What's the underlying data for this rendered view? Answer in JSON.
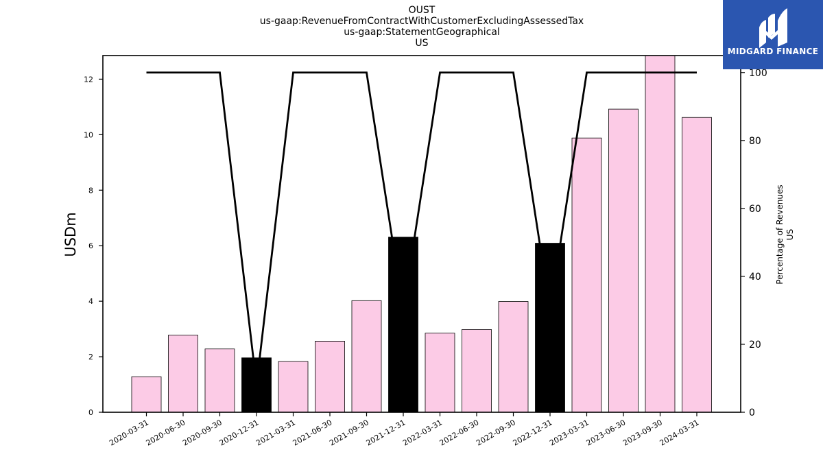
{
  "chart_data": {
    "type": "bar",
    "title_lines": [
      "OUST",
      "us-gaap:RevenueFromContractWithCustomerExcludingAssessedTax",
      "us-gaap:StatementGeographical",
      "US"
    ],
    "ylabel": "USDm",
    "y2label_lines": [
      "Percentage of Revenues",
      "US"
    ],
    "ylim": [
      0,
      12.85
    ],
    "y2lim": [
      0,
      105
    ],
    "yticks": [
      0,
      2,
      4,
      6,
      8,
      10,
      12
    ],
    "y2ticks": [
      0,
      20,
      40,
      60,
      80,
      100
    ],
    "categories": [
      "2020-03-31",
      "2020-06-30",
      "2020-09-30",
      "2020-12-31",
      "2021-03-31",
      "2021-06-30",
      "2021-09-30",
      "2021-12-31",
      "2022-03-31",
      "2022-06-30",
      "2022-09-30",
      "2022-12-31",
      "2023-03-31",
      "2023-06-30",
      "2023-09-30",
      "2024-03-31"
    ],
    "values": [
      1.28,
      2.78,
      2.28,
      1.96,
      1.83,
      2.56,
      4.02,
      6.31,
      2.85,
      2.98,
      3.99,
      6.09,
      9.88,
      10.92,
      12.9,
      10.62
    ],
    "bar_colors": [
      "#fccbe6",
      "#fccbe6",
      "#fccbe6",
      "#000000",
      "#fccbe6",
      "#fccbe6",
      "#fccbe6",
      "#000000",
      "#fccbe6",
      "#fccbe6",
      "#fccbe6",
      "#000000",
      "#fccbe6",
      "#fccbe6",
      "#fccbe6",
      "#fccbe6"
    ],
    "percentage_line": [
      100,
      100,
      100,
      8,
      100,
      100,
      100,
      30,
      100,
      100,
      100,
      30,
      100,
      100,
      100,
      100
    ],
    "line_color": "#000000",
    "grid": false
  },
  "logo": {
    "text": "MIDGARD FINANCE",
    "color": "#2b56b0"
  }
}
